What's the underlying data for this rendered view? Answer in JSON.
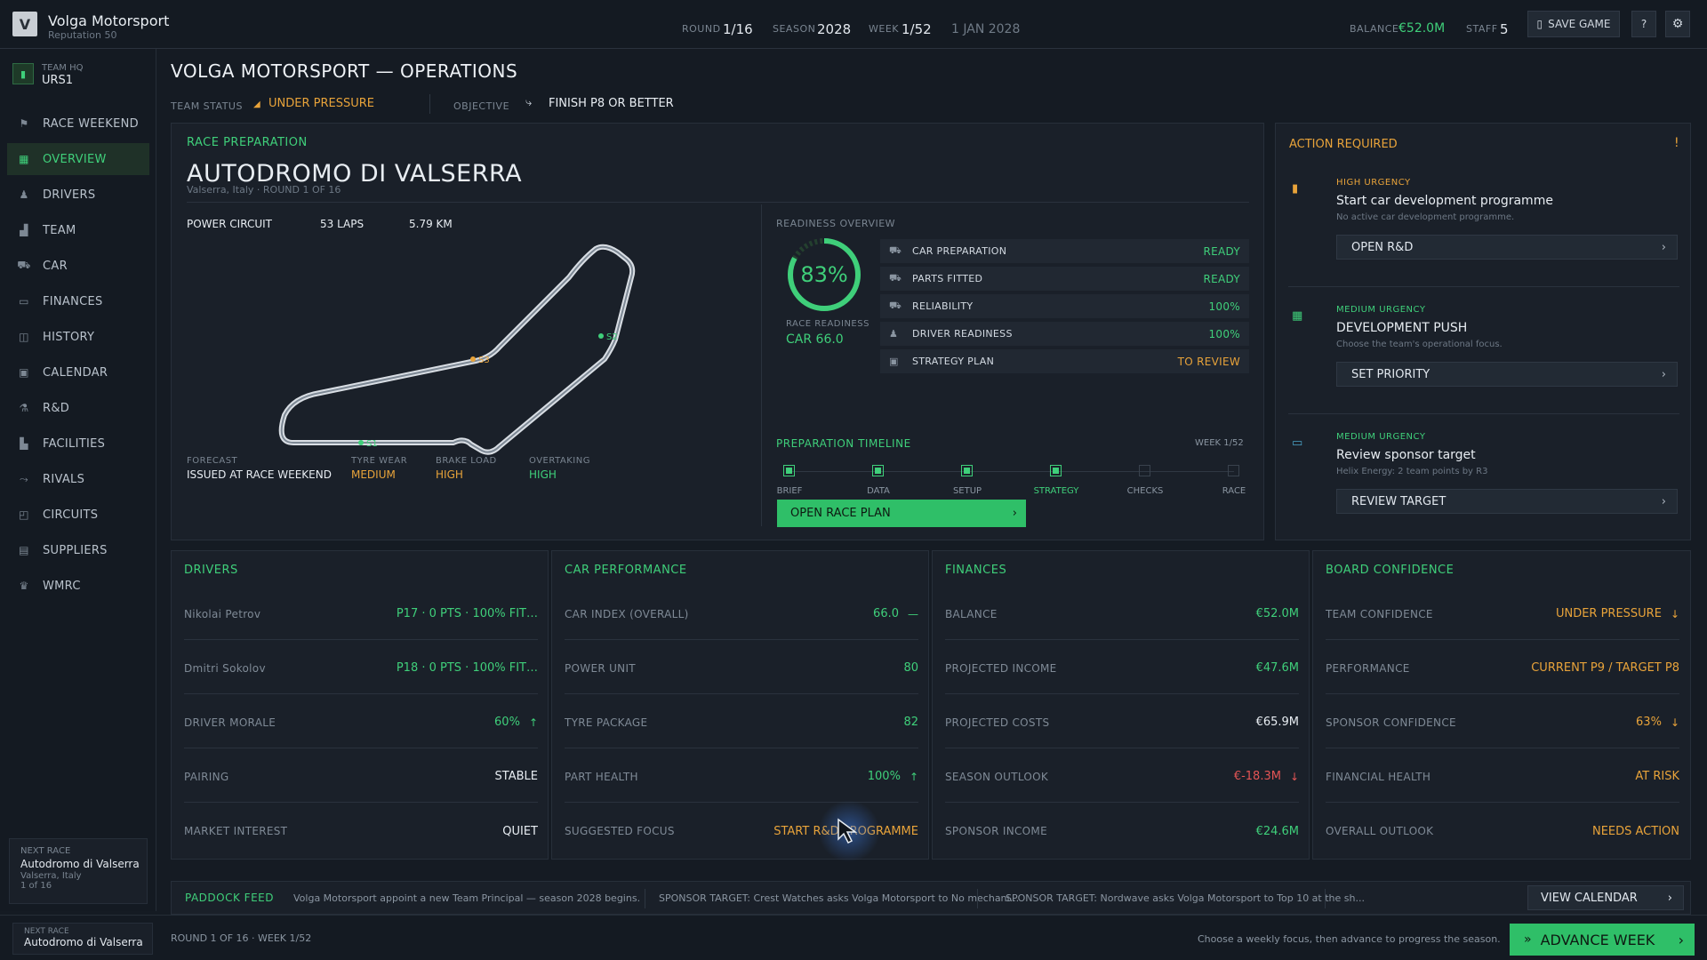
{
  "topbar": {
    "logo_letter": "V",
    "team_name": "Volga Motorsport",
    "reputation": "Reputation 50",
    "round_label": "ROUND",
    "round_value": "1/16",
    "season_label": "SEASON",
    "season_value": "2028",
    "week_label": "WEEK",
    "week_value": "1/52",
    "date": "1 JAN 2028",
    "balance_label": "BALANCE",
    "balance_value": "€52.0M",
    "staff_label": "STAFF",
    "staff_value": "5",
    "save_label": "SAVE GAME",
    "help_label": "?"
  },
  "sidebar": {
    "hq_label": "TEAM HQ",
    "hq_code": "URS1",
    "items": [
      {
        "label": "RACE WEEKEND",
        "icon": "flag-icon"
      },
      {
        "label": "OVERVIEW",
        "icon": "grid-icon"
      },
      {
        "label": "DRIVERS",
        "icon": "driver-icon"
      },
      {
        "label": "TEAM",
        "icon": "team-icon"
      },
      {
        "label": "CAR",
        "icon": "car-icon"
      },
      {
        "label": "FINANCES",
        "icon": "card-icon"
      },
      {
        "label": "HISTORY",
        "icon": "history-icon"
      },
      {
        "label": "CALENDAR",
        "icon": "calendar-icon"
      },
      {
        "label": "R&D",
        "icon": "flask-icon"
      },
      {
        "label": "FACILITIES",
        "icon": "factory-icon"
      },
      {
        "label": "RIVALS",
        "icon": "rivals-icon"
      },
      {
        "label": "CIRCUITS",
        "icon": "circuit-icon"
      },
      {
        "label": "SUPPLIERS",
        "icon": "box-icon"
      },
      {
        "label": "WMRC",
        "icon": "trophy-icon"
      }
    ],
    "next_race": {
      "label": "NEXT RACE",
      "name": "Autodromo di Valserra",
      "location": "Valserra, Italy",
      "round": "1 of 16"
    }
  },
  "header": {
    "title": "VOLGA MOTORSPORT — OPERATIONS",
    "status_label": "TEAM STATUS",
    "status_value": "UNDER PRESSURE",
    "objective_label": "OBJECTIVE",
    "objective_value": "FINISH P8 OR BETTER"
  },
  "race_prep": {
    "section": "RACE PREPARATION",
    "circuit": "AUTODROMO DI VALSERRA",
    "subtitle": "Valserra, Italy · ROUND 1 OF 16",
    "type": "POWER CIRCUIT",
    "laps": "53 LAPS",
    "length": "5.79 KM",
    "track_markers": [
      "S1",
      "S2",
      "S3"
    ],
    "forecast_label": "FORECAST",
    "forecast_value": "ISSUED AT RACE WEEKEND",
    "tyre_label": "TYRE WEAR",
    "tyre_value": "MEDIUM",
    "brake_label": "BRAKE LOAD",
    "brake_value": "HIGH",
    "overtaking_label": "OVERTAKING",
    "overtaking_value": "HIGH",
    "readiness_title": "READINESS OVERVIEW",
    "readiness_pct": "83%",
    "readiness_fraction": 0.83,
    "readiness_label": "RACE READINESS",
    "car_index": "CAR 66.0",
    "rows": [
      {
        "label": "CAR PREPARATION",
        "value": "READY",
        "tone": "green",
        "icon": "car-icon"
      },
      {
        "label": "PARTS FITTED",
        "value": "READY",
        "tone": "green",
        "icon": "car-icon"
      },
      {
        "label": "RELIABILITY",
        "value": "100%",
        "tone": "green",
        "icon": "car-icon"
      },
      {
        "label": "DRIVER READINESS",
        "value": "100%",
        "tone": "green",
        "icon": "driver-icon"
      },
      {
        "label": "STRATEGY PLAN",
        "value": "TO REVIEW",
        "tone": "orange",
        "icon": "calendar-icon"
      }
    ],
    "timeline_title": "PREPARATION TIMELINE",
    "timeline_week": "WEEK 1/52",
    "timeline_steps": [
      {
        "label": "BRIEF",
        "done": true
      },
      {
        "label": "DATA",
        "done": true
      },
      {
        "label": "SETUP",
        "done": true
      },
      {
        "label": "STRATEGY",
        "done": true,
        "current": true
      },
      {
        "label": "CHECKS",
        "done": false
      },
      {
        "label": "RACE",
        "done": false
      }
    ],
    "open_plan_label": "OPEN RACE PLAN"
  },
  "actions": {
    "title": "ACTION REQUIRED",
    "items": [
      {
        "urgency": "HIGH URGENCY",
        "title": "Start car development programme",
        "desc": "No active car development programme.",
        "button": "OPEN R&D",
        "icon": "lock-icon"
      },
      {
        "urgency": "MEDIUM URGENCY",
        "title": "DEVELOPMENT PUSH",
        "desc": "Choose the team's operational focus.",
        "button": "SET PRIORITY",
        "icon": "grid-icon"
      },
      {
        "urgency": "MEDIUM URGENCY",
        "title": "Review sponsor target",
        "desc": "Helix Energy: 2 team points by R3",
        "button": "REVIEW TARGET",
        "icon": "card-icon"
      }
    ]
  },
  "cards": {
    "drivers": {
      "title": "DRIVERS",
      "rows": [
        {
          "label": "Nikolai Petrov",
          "value": "P17 · 0 PTS · 100% FIT…"
        },
        {
          "label": "Dmitri Sokolov",
          "value": "P18 · 0 PTS · 100% FIT…"
        },
        {
          "label": "DRIVER MORALE",
          "value": "60%",
          "trend": "↑"
        },
        {
          "label": "PAIRING",
          "value": "STABLE"
        },
        {
          "label": "MARKET INTEREST",
          "value": "QUIET"
        }
      ]
    },
    "car": {
      "title": "CAR PERFORMANCE",
      "rows": [
        {
          "label": "CAR INDEX (OVERALL)",
          "value": "66.0",
          "trend": "—"
        },
        {
          "label": "POWER UNIT",
          "value": "80"
        },
        {
          "label": "TYRE PACKAGE",
          "value": "82"
        },
        {
          "label": "PART HEALTH",
          "value": "100%",
          "trend": "↑"
        },
        {
          "label": "SUGGESTED FOCUS",
          "value": "START R&D PROGRAMME"
        }
      ]
    },
    "finances": {
      "title": "FINANCES",
      "rows": [
        {
          "label": "BALANCE",
          "value": "€52.0M"
        },
        {
          "label": "PROJECTED INCOME",
          "value": "€47.6M"
        },
        {
          "label": "PROJECTED COSTS",
          "value": "€65.9M"
        },
        {
          "label": "SEASON OUTLOOK",
          "value": "€-18.3M",
          "trend": "↓"
        },
        {
          "label": "SPONSOR INCOME",
          "value": "€24.6M"
        }
      ]
    },
    "board": {
      "title": "BOARD CONFIDENCE",
      "rows": [
        {
          "label": "TEAM CONFIDENCE",
          "value": "UNDER PRESSURE",
          "trend": "↓"
        },
        {
          "label": "PERFORMANCE",
          "value": "CURRENT P9 / TARGET P8"
        },
        {
          "label": "SPONSOR CONFIDENCE",
          "value": "63%",
          "trend": "↓"
        },
        {
          "label": "FINANCIAL HEALTH",
          "value": "AT RISK"
        },
        {
          "label": "OVERALL OUTLOOK",
          "value": "NEEDS ACTION"
        }
      ]
    }
  },
  "feed": {
    "title": "PADDOCK FEED",
    "items": [
      "Volga Motorsport appoint a new Team Principal — season 2028 begins.",
      "SPONSOR TARGET: Crest Watches asks Volga Motorsport to No mechani...",
      "SPONSOR TARGET: Nordwave asks Volga Motorsport to Top 10 at the sh..."
    ],
    "calendar_button": "VIEW CALENDAR"
  },
  "bottombar": {
    "next_label": "NEXT RACE",
    "next_value": "Autodromo di Valserra",
    "round_info": "ROUND 1 OF 16 · WEEK 1/52",
    "hint": "Choose a weekly focus, then advance to progress the season.",
    "advance_label": "ADVANCE WEEK"
  },
  "colors": {
    "accent": "#3fcf7a",
    "warning": "#e8a33a",
    "danger": "#e45555",
    "background": "#151b23"
  }
}
